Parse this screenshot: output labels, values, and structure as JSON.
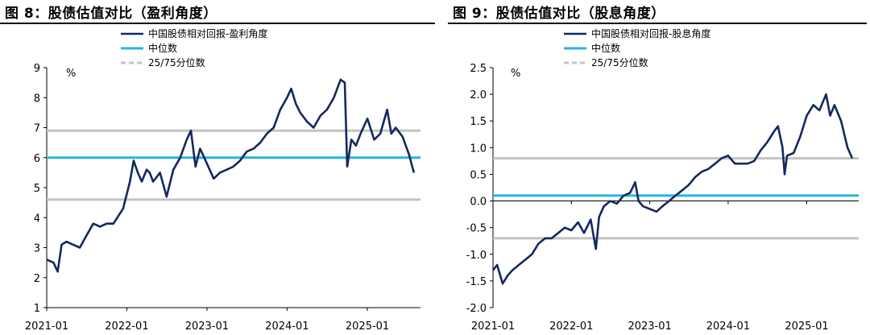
{
  "colors": {
    "series": "#15285e",
    "median": "#25b4e6",
    "quartile": "#c3c3c3"
  },
  "chart_data": [
    {
      "type": "line",
      "title": "图 8：股债估值对比（盈利角度）",
      "unit": "%",
      "ylim": [
        1,
        9
      ],
      "yticks": [
        "1",
        "2",
        "3",
        "4",
        "5",
        "6",
        "7",
        "8",
        "9"
      ],
      "xticks": [
        "2021-01",
        "2022-01",
        "2023-01",
        "2024-01",
        "2025-01"
      ],
      "xrange": [
        "2021-01-01",
        "2025-08-31"
      ],
      "legend": [
        "中国股债相对回报-盈利角度",
        "中位数",
        "25/75分位数"
      ],
      "median": 6.0,
      "quartiles": [
        4.6,
        6.9
      ],
      "x_axis_at": 1,
      "series": {
        "name": "中国股债相对回报-盈利角度",
        "points": [
          [
            "2021-01-01",
            2.6
          ],
          [
            "2021-02-01",
            2.5
          ],
          [
            "2021-02-20",
            2.2
          ],
          [
            "2021-03-10",
            3.1
          ],
          [
            "2021-04-01",
            3.2
          ],
          [
            "2021-05-01",
            3.1
          ],
          [
            "2021-06-01",
            3.0
          ],
          [
            "2021-07-01",
            3.4
          ],
          [
            "2021-08-01",
            3.8
          ],
          [
            "2021-09-01",
            3.7
          ],
          [
            "2021-10-01",
            3.8
          ],
          [
            "2021-11-01",
            3.8
          ],
          [
            "2021-12-15",
            4.3
          ],
          [
            "2022-01-15",
            5.2
          ],
          [
            "2022-02-01",
            5.9
          ],
          [
            "2022-02-20",
            5.5
          ],
          [
            "2022-03-10",
            5.2
          ],
          [
            "2022-04-01",
            5.6
          ],
          [
            "2022-04-15",
            5.5
          ],
          [
            "2022-05-01",
            5.2
          ],
          [
            "2022-06-01",
            5.5
          ],
          [
            "2022-07-01",
            4.7
          ],
          [
            "2022-08-01",
            5.6
          ],
          [
            "2022-09-01",
            6.0
          ],
          [
            "2022-10-01",
            6.6
          ],
          [
            "2022-10-20",
            6.9
          ],
          [
            "2022-11-10",
            5.7
          ],
          [
            "2022-12-01",
            6.3
          ],
          [
            "2023-01-01",
            5.8
          ],
          [
            "2023-02-01",
            5.3
          ],
          [
            "2023-03-01",
            5.5
          ],
          [
            "2023-04-01",
            5.6
          ],
          [
            "2023-05-01",
            5.7
          ],
          [
            "2023-06-01",
            5.9
          ],
          [
            "2023-07-01",
            6.2
          ],
          [
            "2023-08-01",
            6.3
          ],
          [
            "2023-09-01",
            6.5
          ],
          [
            "2023-10-01",
            6.8
          ],
          [
            "2023-11-01",
            7.0
          ],
          [
            "2023-12-01",
            7.6
          ],
          [
            "2024-01-01",
            8.0
          ],
          [
            "2024-01-20",
            8.3
          ],
          [
            "2024-02-10",
            7.8
          ],
          [
            "2024-03-01",
            7.5
          ],
          [
            "2024-04-01",
            7.2
          ],
          [
            "2024-05-01",
            7.0
          ],
          [
            "2024-06-01",
            7.4
          ],
          [
            "2024-07-01",
            7.6
          ],
          [
            "2024-08-01",
            8.0
          ],
          [
            "2024-09-01",
            8.6
          ],
          [
            "2024-09-20",
            8.5
          ],
          [
            "2024-10-01",
            5.7
          ],
          [
            "2024-10-20",
            6.6
          ],
          [
            "2024-11-10",
            6.4
          ],
          [
            "2024-12-01",
            6.8
          ],
          [
            "2025-01-01",
            7.3
          ],
          [
            "2025-02-01",
            6.6
          ],
          [
            "2025-03-01",
            6.8
          ],
          [
            "2025-04-01",
            7.6
          ],
          [
            "2025-04-20",
            6.8
          ],
          [
            "2025-05-10",
            7.0
          ],
          [
            "2025-06-10",
            6.7
          ],
          [
            "2025-07-10",
            6.1
          ],
          [
            "2025-08-01",
            5.5
          ]
        ]
      }
    },
    {
      "type": "line",
      "title": "图 9：股债估值对比（股息角度）",
      "unit": "%",
      "ylim": [
        -2.0,
        2.5
      ],
      "yticks": [
        "-2.0",
        "-1.5",
        "-1.0",
        "-0.5",
        "0.0",
        "0.5",
        "1.0",
        "1.5",
        "2.0",
        "2.5"
      ],
      "xticks": [
        "2021-01",
        "2022-01",
        "2023-01",
        "2024-01",
        "2025-01"
      ],
      "xrange": [
        "2021-01-01",
        "2025-08-31"
      ],
      "legend": [
        "中国股债相对回报-股息角度",
        "中位数",
        "25/75分位数"
      ],
      "median": 0.1,
      "quartiles": [
        -0.7,
        0.8
      ],
      "x_axis_at": 0,
      "series": {
        "name": "中国股债相对回报-股息角度",
        "points": [
          [
            "2021-01-01",
            -1.3
          ],
          [
            "2021-01-20",
            -1.2
          ],
          [
            "2021-02-15",
            -1.55
          ],
          [
            "2021-03-10",
            -1.4
          ],
          [
            "2021-04-01",
            -1.3
          ],
          [
            "2021-05-01",
            -1.2
          ],
          [
            "2021-06-01",
            -1.1
          ],
          [
            "2021-07-01",
            -1.0
          ],
          [
            "2021-08-01",
            -0.8
          ],
          [
            "2021-09-01",
            -0.7
          ],
          [
            "2021-10-01",
            -0.7
          ],
          [
            "2021-11-01",
            -0.6
          ],
          [
            "2021-12-01",
            -0.5
          ],
          [
            "2022-01-01",
            -0.55
          ],
          [
            "2022-02-01",
            -0.4
          ],
          [
            "2022-03-01",
            -0.6
          ],
          [
            "2022-04-01",
            -0.35
          ],
          [
            "2022-04-25",
            -0.9
          ],
          [
            "2022-05-10",
            -0.3
          ],
          [
            "2022-06-01",
            -0.1
          ],
          [
            "2022-07-01",
            0.0
          ],
          [
            "2022-08-01",
            -0.05
          ],
          [
            "2022-09-01",
            0.1
          ],
          [
            "2022-10-01",
            0.15
          ],
          [
            "2022-10-25",
            0.35
          ],
          [
            "2022-11-10",
            0.0
          ],
          [
            "2022-12-01",
            -0.1
          ],
          [
            "2023-01-01",
            -0.15
          ],
          [
            "2023-02-01",
            -0.2
          ],
          [
            "2023-03-01",
            -0.1
          ],
          [
            "2023-04-01",
            0.0
          ],
          [
            "2023-05-01",
            0.1
          ],
          [
            "2023-06-01",
            0.2
          ],
          [
            "2023-07-01",
            0.3
          ],
          [
            "2023-08-01",
            0.45
          ],
          [
            "2023-09-01",
            0.55
          ],
          [
            "2023-10-01",
            0.6
          ],
          [
            "2023-11-01",
            0.7
          ],
          [
            "2023-12-01",
            0.8
          ],
          [
            "2024-01-01",
            0.85
          ],
          [
            "2024-02-01",
            0.7
          ],
          [
            "2024-03-01",
            0.7
          ],
          [
            "2024-04-01",
            0.7
          ],
          [
            "2024-05-01",
            0.75
          ],
          [
            "2024-06-01",
            0.95
          ],
          [
            "2024-07-01",
            1.1
          ],
          [
            "2024-08-01",
            1.3
          ],
          [
            "2024-08-20",
            1.4
          ],
          [
            "2024-09-10",
            1.0
          ],
          [
            "2024-09-20",
            0.5
          ],
          [
            "2024-10-01",
            0.85
          ],
          [
            "2024-11-01",
            0.9
          ],
          [
            "2024-12-01",
            1.2
          ],
          [
            "2025-01-01",
            1.6
          ],
          [
            "2025-02-01",
            1.8
          ],
          [
            "2025-03-01",
            1.7
          ],
          [
            "2025-04-01",
            2.0
          ],
          [
            "2025-04-20",
            1.6
          ],
          [
            "2025-05-10",
            1.8
          ],
          [
            "2025-06-10",
            1.5
          ],
          [
            "2025-07-10",
            1.0
          ],
          [
            "2025-08-01",
            0.8
          ]
        ]
      }
    }
  ]
}
